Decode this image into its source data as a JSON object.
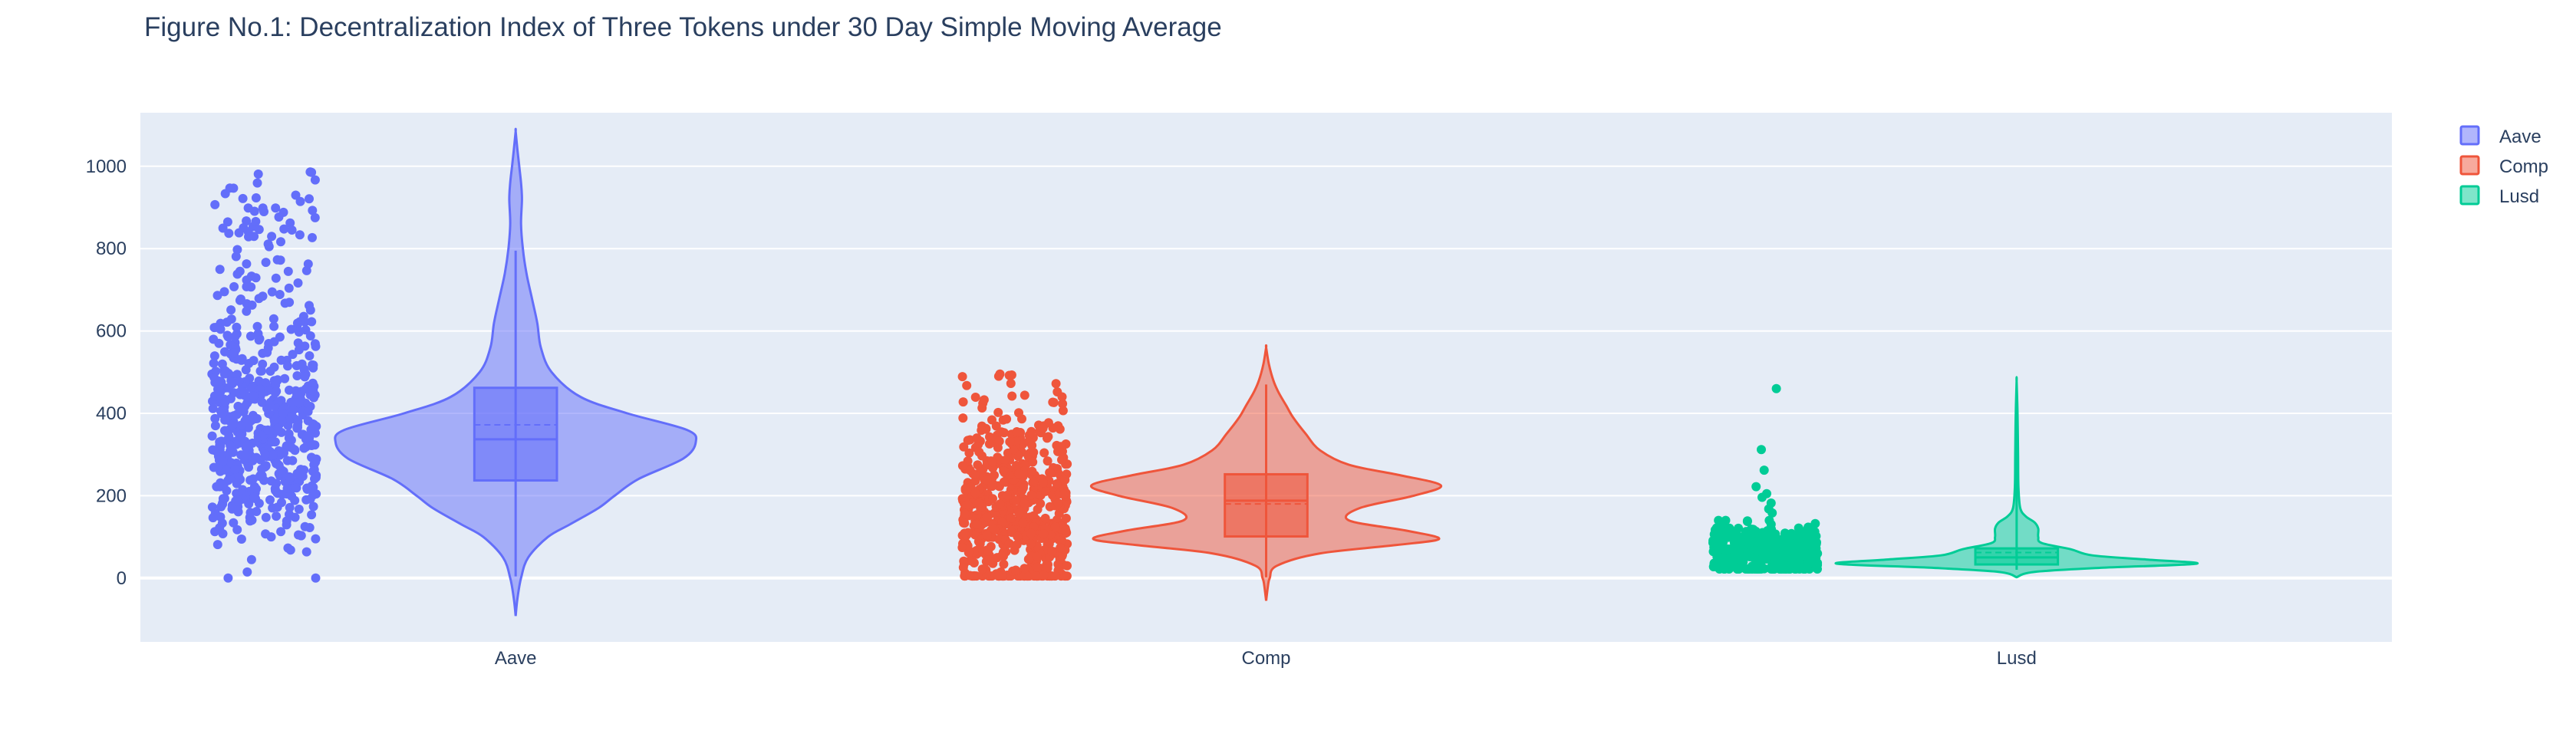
{
  "chart_data": {
    "type": "violin",
    "title": "Figure No.1: Decentralization Index of Three Tokens under 30 Day Simple Moving Average",
    "xlabel": "",
    "ylabel": "",
    "ylim": [
      -155,
      1130
    ],
    "yticks": [
      0,
      200,
      400,
      600,
      800,
      1000
    ],
    "grid": true,
    "legend_position": "top-right",
    "categories": [
      "Aave",
      "Comp",
      "Lusd"
    ],
    "series": [
      {
        "name": "Aave",
        "color": "#636efa",
        "points": "all",
        "box": {
          "q1": 237,
          "median": 337,
          "q3": 462,
          "mean": 372,
          "whisker_low": 4,
          "whisker_high": 795
        },
        "kde_range": [
          -92,
          1085
        ],
        "density": [
          {
            "y": -92,
            "w": 0.0
          },
          {
            "y": -50,
            "w": 0.01
          },
          {
            "y": 0,
            "w": 0.03
          },
          {
            "y": 50,
            "w": 0.07
          },
          {
            "y": 100,
            "w": 0.18
          },
          {
            "y": 130,
            "w": 0.3
          },
          {
            "y": 170,
            "w": 0.46
          },
          {
            "y": 200,
            "w": 0.55
          },
          {
            "y": 240,
            "w": 0.68
          },
          {
            "y": 290,
            "w": 0.93
          },
          {
            "y": 330,
            "w": 1.0
          },
          {
            "y": 360,
            "w": 0.95
          },
          {
            "y": 400,
            "w": 0.62
          },
          {
            "y": 440,
            "w": 0.36
          },
          {
            "y": 500,
            "w": 0.2
          },
          {
            "y": 560,
            "w": 0.14
          },
          {
            "y": 620,
            "w": 0.12
          },
          {
            "y": 680,
            "w": 0.09
          },
          {
            "y": 740,
            "w": 0.06
          },
          {
            "y": 800,
            "w": 0.04
          },
          {
            "y": 860,
            "w": 0.03
          },
          {
            "y": 920,
            "w": 0.035
          },
          {
            "y": 960,
            "w": 0.03
          },
          {
            "y": 1000,
            "w": 0.02
          },
          {
            "y": 1040,
            "w": 0.01
          },
          {
            "y": 1085,
            "w": 0.0
          }
        ],
        "jitter": {
          "count": 620,
          "min": 0,
          "max": 990,
          "mode": 330,
          "spread": 130,
          "tail": 0.22
        }
      },
      {
        "name": "Comp",
        "color": "#ef553b",
        "points": "all",
        "box": {
          "q1": 101,
          "median": 188,
          "q3": 252,
          "mean": 180,
          "whisker_low": 2,
          "whisker_high": 470
        },
        "kde_range": [
          -55,
          560
        ],
        "density": [
          {
            "y": -55,
            "w": 0.0
          },
          {
            "y": -20,
            "w": 0.01
          },
          {
            "y": 0,
            "w": 0.02
          },
          {
            "y": 30,
            "w": 0.06
          },
          {
            "y": 60,
            "w": 0.3
          },
          {
            "y": 80,
            "w": 0.72
          },
          {
            "y": 95,
            "w": 0.96
          },
          {
            "y": 115,
            "w": 0.78
          },
          {
            "y": 140,
            "w": 0.46
          },
          {
            "y": 170,
            "w": 0.52
          },
          {
            "y": 200,
            "w": 0.82
          },
          {
            "y": 225,
            "w": 0.97
          },
          {
            "y": 250,
            "w": 0.74
          },
          {
            "y": 275,
            "w": 0.46
          },
          {
            "y": 310,
            "w": 0.3
          },
          {
            "y": 350,
            "w": 0.22
          },
          {
            "y": 390,
            "w": 0.15
          },
          {
            "y": 420,
            "w": 0.11
          },
          {
            "y": 450,
            "w": 0.07
          },
          {
            "y": 480,
            "w": 0.04
          },
          {
            "y": 520,
            "w": 0.015
          },
          {
            "y": 560,
            "w": 0.0
          }
        ],
        "jitter": {
          "count": 620,
          "min": 5,
          "max": 505,
          "mode": 150,
          "spread": 110,
          "tail": 0.1
        }
      },
      {
        "name": "Lusd",
        "color": "#00cc96",
        "points": "all",
        "box": {
          "q1": 33,
          "median": 50,
          "q3": 72,
          "mean": 62,
          "whisker_low": 20,
          "whisker_high": 460
        },
        "kde_range": [
          2,
          478
        ],
        "density": [
          {
            "y": 2,
            "w": 0.0
          },
          {
            "y": 15,
            "w": 0.1
          },
          {
            "y": 25,
            "w": 0.48
          },
          {
            "y": 35,
            "w": 1.0
          },
          {
            "y": 45,
            "w": 0.72
          },
          {
            "y": 55,
            "w": 0.42
          },
          {
            "y": 70,
            "w": 0.3
          },
          {
            "y": 85,
            "w": 0.14
          },
          {
            "y": 100,
            "w": 0.12
          },
          {
            "y": 120,
            "w": 0.12
          },
          {
            "y": 135,
            "w": 0.1
          },
          {
            "y": 150,
            "w": 0.05
          },
          {
            "y": 170,
            "w": 0.02
          },
          {
            "y": 220,
            "w": 0.01
          },
          {
            "y": 300,
            "w": 0.008
          },
          {
            "y": 400,
            "w": 0.005
          },
          {
            "y": 478,
            "w": 0.0
          }
        ],
        "jitter": {
          "count": 420,
          "min": 22,
          "max": 140,
          "mode": 65,
          "spread": 30,
          "tail": 0.0
        },
        "outliers": [
          460,
          312,
          262,
          222,
          205,
          196,
          182,
          168,
          158
        ]
      }
    ]
  }
}
